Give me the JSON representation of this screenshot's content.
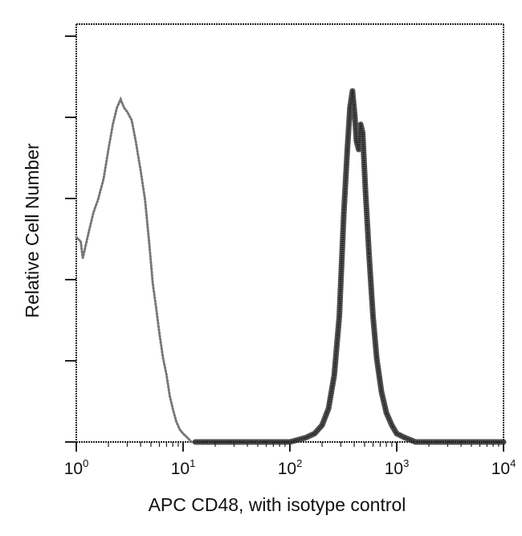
{
  "chart_data": {
    "type": "line",
    "title": "",
    "xlabel": "APC CD48, with isotype control",
    "ylabel": "Relative Cell Number",
    "x_scale": "log",
    "xlim": [
      1,
      10000
    ],
    "ylim": [
      0,
      100
    ],
    "x_ticks": [
      {
        "base": "10",
        "exp": "0",
        "value": 1
      },
      {
        "base": "10",
        "exp": "1",
        "value": 10
      },
      {
        "base": "10",
        "exp": "2",
        "value": 100
      },
      {
        "base": "10",
        "exp": "3",
        "value": 1000
      },
      {
        "base": "10",
        "exp": "4",
        "value": 10000
      }
    ],
    "y_tick_count": 6,
    "grid": false,
    "legend": "none",
    "series": [
      {
        "style": "dotted-light",
        "color": "#777777",
        "points": [
          [
            1.0,
            49
          ],
          [
            1.1,
            48
          ],
          [
            1.15,
            44
          ],
          [
            1.2,
            46
          ],
          [
            1.3,
            50
          ],
          [
            1.45,
            55
          ],
          [
            1.6,
            58
          ],
          [
            1.8,
            63
          ],
          [
            2.0,
            70
          ],
          [
            2.2,
            76
          ],
          [
            2.4,
            80
          ],
          [
            2.6,
            82
          ],
          [
            2.8,
            80
          ],
          [
            3.0,
            79
          ],
          [
            3.3,
            77
          ],
          [
            3.6,
            72
          ],
          [
            4.0,
            65
          ],
          [
            4.4,
            58
          ],
          [
            4.8,
            48
          ],
          [
            5.2,
            38
          ],
          [
            5.6,
            32
          ],
          [
            6.0,
            26
          ],
          [
            6.5,
            20
          ],
          [
            7.0,
            16
          ],
          [
            7.5,
            11
          ],
          [
            8.0,
            8
          ],
          [
            8.6,
            5
          ],
          [
            9.3,
            3
          ],
          [
            10,
            2
          ],
          [
            11,
            1
          ],
          [
            12,
            0
          ],
          [
            13,
            0
          ]
        ]
      },
      {
        "style": "solid-heavy",
        "color": "#333333",
        "points": [
          [
            13,
            0
          ],
          [
            50,
            0
          ],
          [
            100,
            0
          ],
          [
            140,
            1
          ],
          [
            170,
            2
          ],
          [
            200,
            4
          ],
          [
            230,
            8
          ],
          [
            260,
            16
          ],
          [
            290,
            30
          ],
          [
            320,
            55
          ],
          [
            345,
            70
          ],
          [
            365,
            80
          ],
          [
            385,
            84
          ],
          [
            405,
            78
          ],
          [
            420,
            72
          ],
          [
            440,
            70
          ],
          [
            460,
            76
          ],
          [
            480,
            74
          ],
          [
            510,
            60
          ],
          [
            550,
            45
          ],
          [
            600,
            30
          ],
          [
            650,
            20
          ],
          [
            720,
            12
          ],
          [
            800,
            7
          ],
          [
            900,
            4
          ],
          [
            1000,
            2
          ],
          [
            1200,
            1
          ],
          [
            1500,
            0
          ],
          [
            10000,
            0
          ]
        ]
      }
    ]
  }
}
